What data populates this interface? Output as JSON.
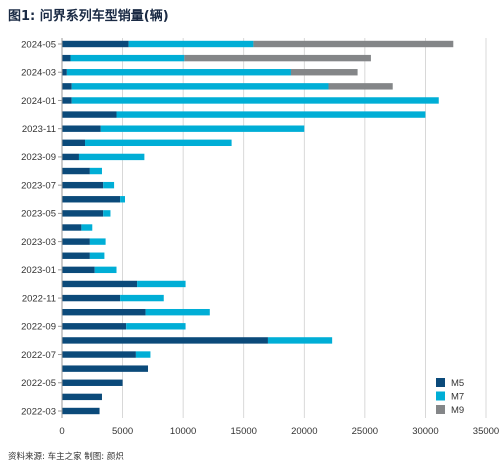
{
  "chart_data": {
    "type": "bar",
    "orientation": "horizontal",
    "stacked": true,
    "title": "图1: 问界系列车型销量(辆)",
    "source": "资料来源: 车主之家     制图: 颜炽",
    "categories": [
      "2022-03",
      "2022-04",
      "2022-05",
      "2022-06",
      "2022-07",
      "2022-08",
      "2022-09",
      "2022-10",
      "2022-11",
      "2022-12",
      "2023-01",
      "2023-02",
      "2023-03",
      "2023-04",
      "2023-05",
      "2023-06",
      "2023-07",
      "2023-08",
      "2023-09",
      "2023-10",
      "2023-11",
      "2023-12",
      "2024-01",
      "2024-02",
      "2024-03",
      "2024-04",
      "2024-05"
    ],
    "ytick_labels": [
      "2022-03",
      "2022-05",
      "2022-07",
      "2022-09",
      "2022-11",
      "2023-01",
      "2023-03",
      "2023-05",
      "2023-07",
      "2023-09",
      "2023-11",
      "2024-01",
      "2024-03",
      "2024-05"
    ],
    "xticks": [
      0,
      5000,
      10000,
      15000,
      20000,
      25000,
      30000,
      35000
    ],
    "xlim": [
      0,
      35000
    ],
    "series": [
      {
        "name": "M5",
        "color": "#0b4a7a",
        "values": [
          3100,
          3300,
          5000,
          7100,
          6100,
          17000,
          5300,
          6900,
          4800,
          6200,
          2700,
          2300,
          2300,
          1600,
          3400,
          4800,
          3400,
          2300,
          1400,
          1900,
          3200,
          4500,
          800,
          800,
          400,
          700,
          5500
        ]
      },
      {
        "name": "M7",
        "color": "#00aed6",
        "values": [
          0,
          0,
          0,
          0,
          1200,
          5300,
          4900,
          5300,
          3600,
          4000,
          1800,
          1200,
          1300,
          900,
          600,
          400,
          900,
          1000,
          5400,
          12100,
          16800,
          25500,
          30300,
          21200,
          18500,
          9400,
          10300
        ]
      },
      {
        "name": "M9",
        "color": "#848688",
        "values": [
          0,
          0,
          0,
          0,
          0,
          0,
          0,
          0,
          0,
          0,
          0,
          0,
          0,
          0,
          0,
          0,
          0,
          0,
          0,
          0,
          0,
          0,
          0,
          5300,
          5500,
          15400,
          16500
        ]
      }
    ],
    "legend": {
      "placement": "bottom-right"
    },
    "grid": {
      "x": true,
      "y": false
    }
  }
}
